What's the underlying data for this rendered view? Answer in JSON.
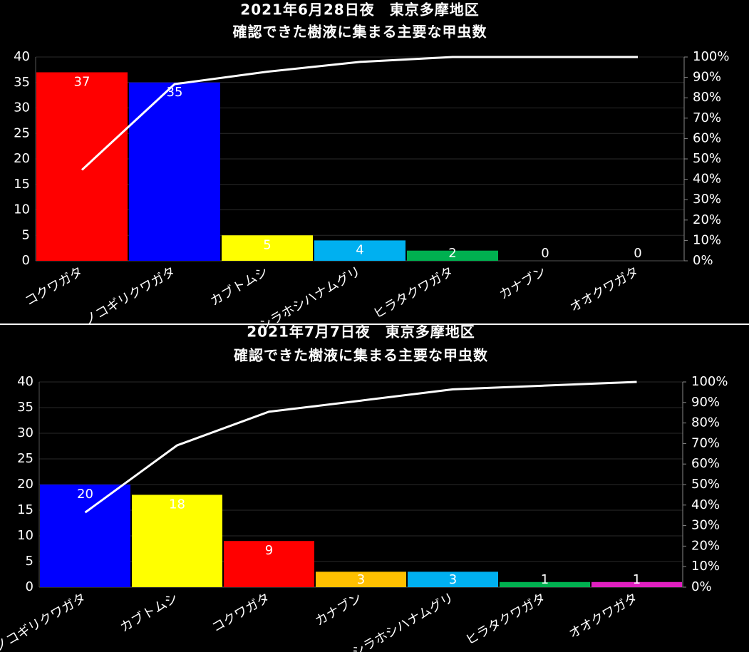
{
  "chart_data": [
    {
      "type": "pareto",
      "title": "2021年6月28日夜　東京多摩地区",
      "subtitle": "確認できた樹液に集まる主要な甲虫数",
      "categories": [
        "コクワガタ",
        "ノコギリクワガタ",
        "カブトムシ",
        "シラホシハナムグリ",
        "ヒラタクワガタ",
        "カナブン",
        "オオクワガタ"
      ],
      "values": [
        37,
        35,
        5,
        4,
        2,
        0,
        0
      ],
      "colors": [
        "#ff0000",
        "#0000ff",
        "#ffff00",
        "#00b0f0",
        "#00b050",
        null,
        null
      ],
      "cumulative": {
        "axis": "y2",
        "color": "#ffffff",
        "values": [
          44.6,
          86.7,
          92.8,
          97.6,
          100,
          100,
          100
        ]
      },
      "ylim": [
        0,
        40
      ],
      "yticks": [
        0,
        5,
        10,
        15,
        20,
        25,
        30,
        35,
        40
      ],
      "y2lim": [
        0,
        100
      ],
      "y2ticks": [
        {
          "value": 0,
          "label": "0%"
        },
        {
          "value": 10,
          "label": "10%"
        },
        {
          "value": 20,
          "label": "20%"
        },
        {
          "value": 30,
          "label": "30%"
        },
        {
          "value": 40,
          "label": "40%"
        },
        {
          "value": 50,
          "label": "50%"
        },
        {
          "value": 60,
          "label": "60%"
        },
        {
          "value": 70,
          "label": "70%"
        },
        {
          "value": 80,
          "label": "80%"
        },
        {
          "value": 90,
          "label": "90%"
        },
        {
          "value": 100,
          "label": "100%"
        }
      ],
      "grid": true
    },
    {
      "type": "pareto",
      "title": "2021年7月7日夜　東京多摩地区",
      "subtitle": "確認できた樹液に集まる主要な甲虫数",
      "categories": [
        "ノコギリクワガタ",
        "カブトムシ",
        "コクワガタ",
        "カナブン",
        "シラホシハナムグリ",
        "ヒラタクワガタ",
        "オオクワガタ"
      ],
      "values": [
        20,
        18,
        9,
        3,
        3,
        1,
        1
      ],
      "colors": [
        "#0000ff",
        "#ffff00",
        "#ff0000",
        "#ffc000",
        "#00b0f0",
        "#00b050",
        "#e020c0"
      ],
      "cumulative": {
        "axis": "y2",
        "color": "#ffffff",
        "values": [
          36.4,
          69.1,
          85.5,
          90.9,
          96.4,
          98.2,
          100
        ]
      },
      "ylim": [
        0,
        40
      ],
      "yticks": [
        0,
        5,
        10,
        15,
        20,
        25,
        30,
        35,
        40
      ],
      "y2lim": [
        0,
        100
      ],
      "y2ticks": [
        {
          "value": 0,
          "label": "0%"
        },
        {
          "value": 10,
          "label": "10%"
        },
        {
          "value": 20,
          "label": "20%"
        },
        {
          "value": 30,
          "label": "30%"
        },
        {
          "value": 40,
          "label": "40%"
        },
        {
          "value": 50,
          "label": "50%"
        },
        {
          "value": 60,
          "label": "60%"
        },
        {
          "value": 70,
          "label": "70%"
        },
        {
          "value": 80,
          "label": "80%"
        },
        {
          "value": 90,
          "label": "90%"
        },
        {
          "value": 100,
          "label": "100%"
        }
      ],
      "grid": true
    }
  ]
}
